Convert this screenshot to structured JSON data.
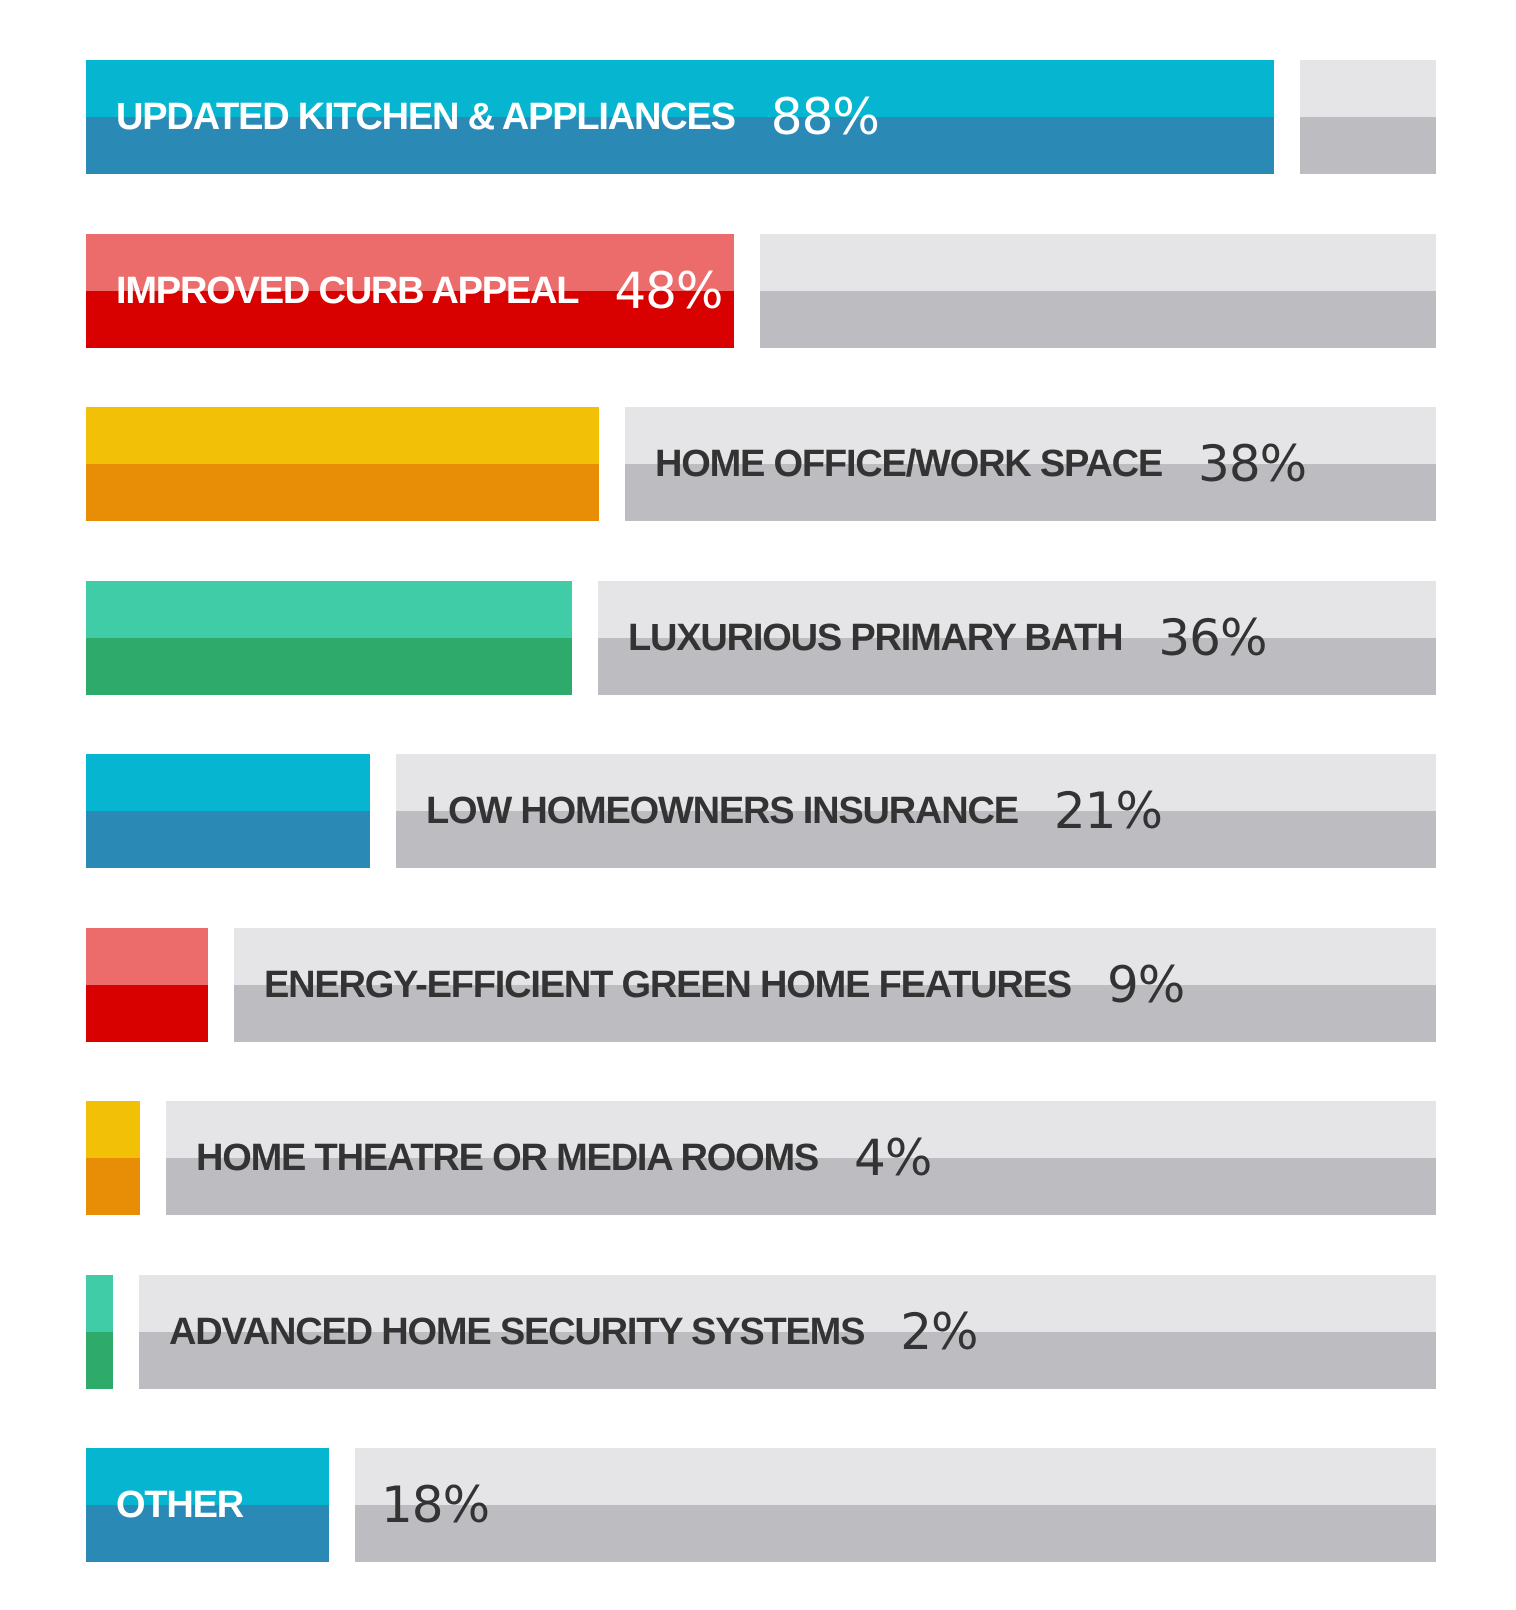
{
  "chart_data": {
    "type": "bar",
    "orientation": "horizontal",
    "stacked_to_100": true,
    "grid": false,
    "legend": "none",
    "title": "",
    "xlabel": "",
    "ylabel": "",
    "xlim": [
      0,
      100
    ],
    "categories": [
      "UPDATED KITCHEN & APPLIANCES",
      "IMPROVED CURB APPEAL",
      "HOME OFFICE/WORK SPACE",
      "LUXURIOUS PRIMARY BATH",
      "LOW HOMEOWNERS INSURANCE",
      "ENERGY-EFFICIENT GREEN HOME FEATURES",
      "HOME THEATRE OR MEDIA ROOMS",
      "ADVANCED HOME SECURITY SYSTEMS",
      "OTHER"
    ],
    "values": [
      88,
      48,
      38,
      36,
      21,
      9,
      4,
      2,
      18
    ],
    "value_labels": [
      "88%",
      "48%",
      "38%",
      "36%",
      "21%",
      "9%",
      "4%",
      "2%",
      "18%"
    ],
    "category_on_fill": [
      true,
      true,
      false,
      false,
      false,
      false,
      false,
      false,
      true
    ],
    "fill_colors": [
      [
        "#06b5d0",
        "#2a8ab5"
      ],
      [
        "#ec6b6b",
        "#d90000"
      ],
      [
        "#f2c007",
        "#e88e06"
      ],
      [
        "#40cca6",
        "#2eab6b"
      ],
      [
        "#06b5d0",
        "#2a8ab5"
      ],
      [
        "#ec6b6b",
        "#d90000"
      ],
      [
        "#f2c007",
        "#e88e06"
      ],
      [
        "#40cca6",
        "#2eab6b"
      ],
      [
        "#06b5d0",
        "#2a8ab5"
      ]
    ],
    "remainder_colors": [
      "#e5e4e6",
      "#bdbcc0"
    ]
  }
}
